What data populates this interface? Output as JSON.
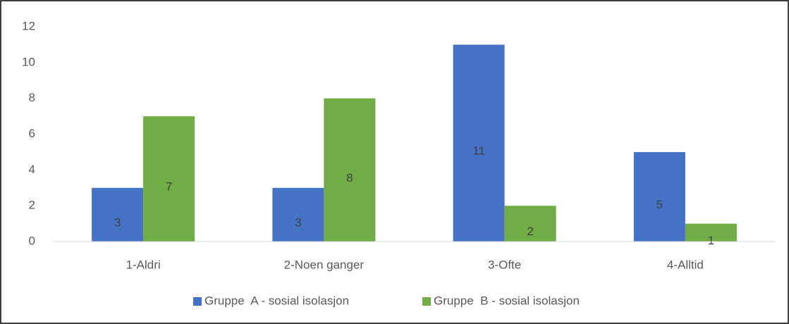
{
  "chart_data": {
    "type": "bar",
    "categories": [
      "1-Aldri",
      "2-Noen ganger",
      "3-Ofte",
      "4-Alltid"
    ],
    "series": [
      {
        "name": "Gruppe  A - sosial isolasjon",
        "color": "#4472c4",
        "values": [
          3,
          3,
          11,
          5
        ]
      },
      {
        "name": "Gruppe  B - sosial isolasjon",
        "color": "#70ad47",
        "values": [
          7,
          8,
          2,
          1
        ]
      }
    ],
    "ylim": [
      0,
      12
    ],
    "yticks": [
      0,
      2,
      4,
      6,
      8,
      10,
      12
    ],
    "grid": false,
    "legend": "bottom",
    "data_labels": true
  }
}
